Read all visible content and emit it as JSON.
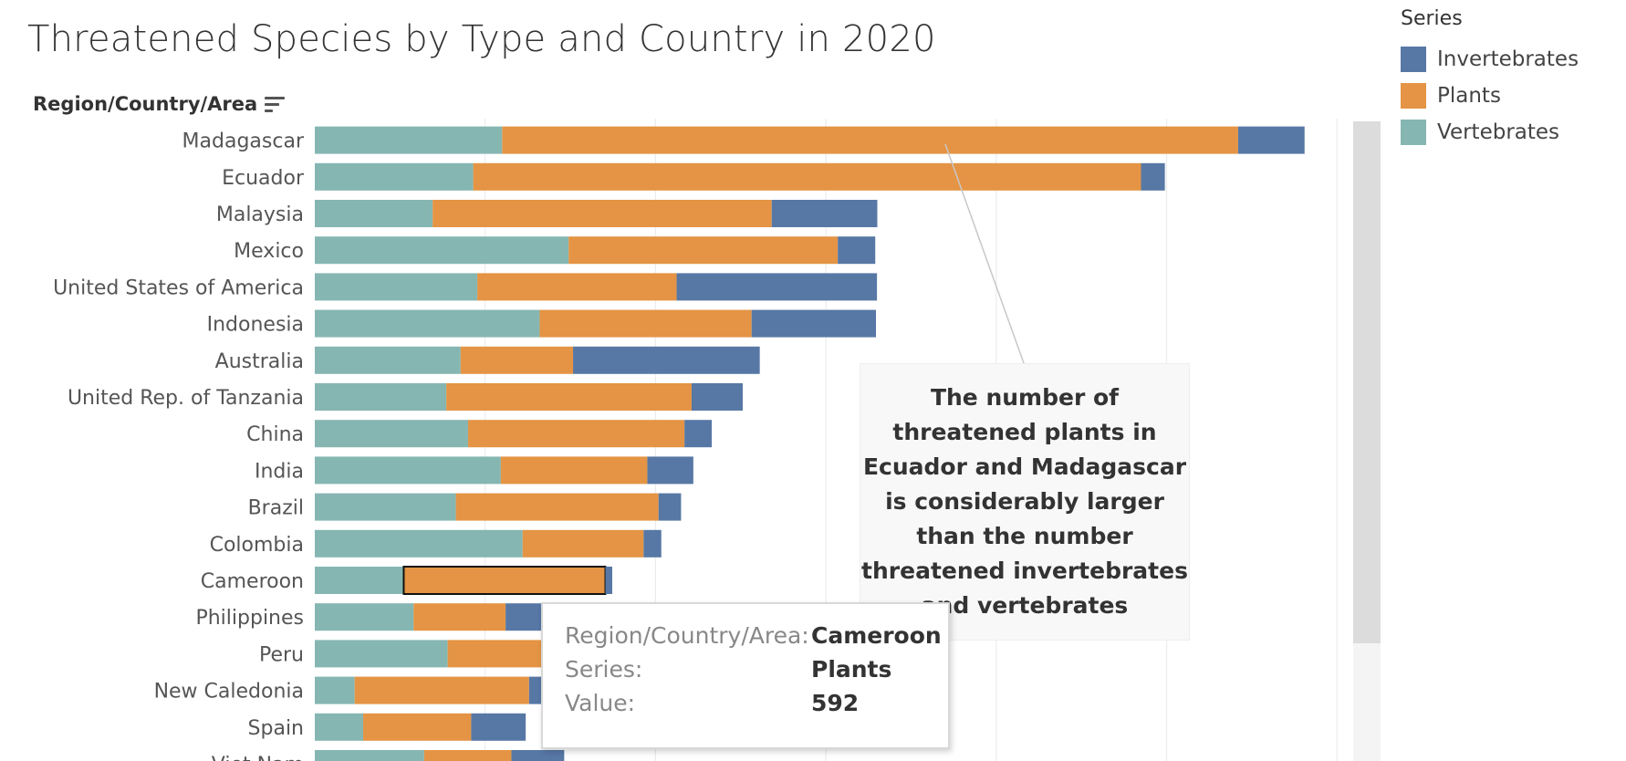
{
  "title": "Threatened Species by Type and Country in 2020",
  "axis_header": "Region/Country/Area",
  "legend": {
    "title": "Series",
    "items": [
      {
        "label": "Invertebrates",
        "color": "#5778a5"
      },
      {
        "label": "Plants",
        "color": "#e49444"
      },
      {
        "label": "Vertebrates",
        "color": "#85b6b2"
      }
    ]
  },
  "annotation": {
    "text": "The number of threatened plants in Ecuador and Madagascar is considerably larger than the number threatened invertebrates and vertebrates"
  },
  "tooltip": {
    "rows": [
      {
        "label": "Region/Country/Area:",
        "value": "Cameroon"
      },
      {
        "label": "Series:",
        "value": "Plants"
      },
      {
        "label": "Value:",
        "value": "592"
      }
    ]
  },
  "chart_data": {
    "type": "bar",
    "orientation": "horizontal",
    "stacked": true,
    "categories": [
      "Madagascar",
      "Ecuador",
      "Malaysia",
      "Mexico",
      "United States of America",
      "Indonesia",
      "Australia",
      "United Rep. of Tanzania",
      "China",
      "India",
      "Brazil",
      "Colombia",
      "Cameroon",
      "Philippines",
      "Peru",
      "New Caledonia",
      "Spain",
      "Viet Nam"
    ],
    "series": [
      {
        "name": "Vertebrates",
        "color": "#85b6b2",
        "values": [
          550,
          465,
          346,
          745,
          477,
          660,
          428,
          386,
          450,
          546,
          414,
          610,
          261,
          290,
          390,
          117,
          142,
          321
        ]
      },
      {
        "name": "Plants",
        "color": "#e49444",
        "values": [
          2160,
          1960,
          995,
          790,
          585,
          622,
          330,
          720,
          635,
          430,
          595,
          355,
          592,
          270,
          275,
          512,
          317,
          256
        ]
      },
      {
        "name": "Invertebrates",
        "color": "#5778a5",
        "values": [
          195,
          70,
          310,
          110,
          588,
          365,
          548,
          150,
          80,
          135,
          66,
          52,
          20,
          120,
          140,
          120,
          160,
          155
        ]
      }
    ],
    "xlim": [
      0,
      3000
    ],
    "gridlines_at": [
      500,
      1000,
      1500,
      2000,
      2500,
      3000
    ],
    "highlighted": {
      "category": "Cameroon",
      "series": "Plants"
    },
    "legend_position": "top-right"
  }
}
